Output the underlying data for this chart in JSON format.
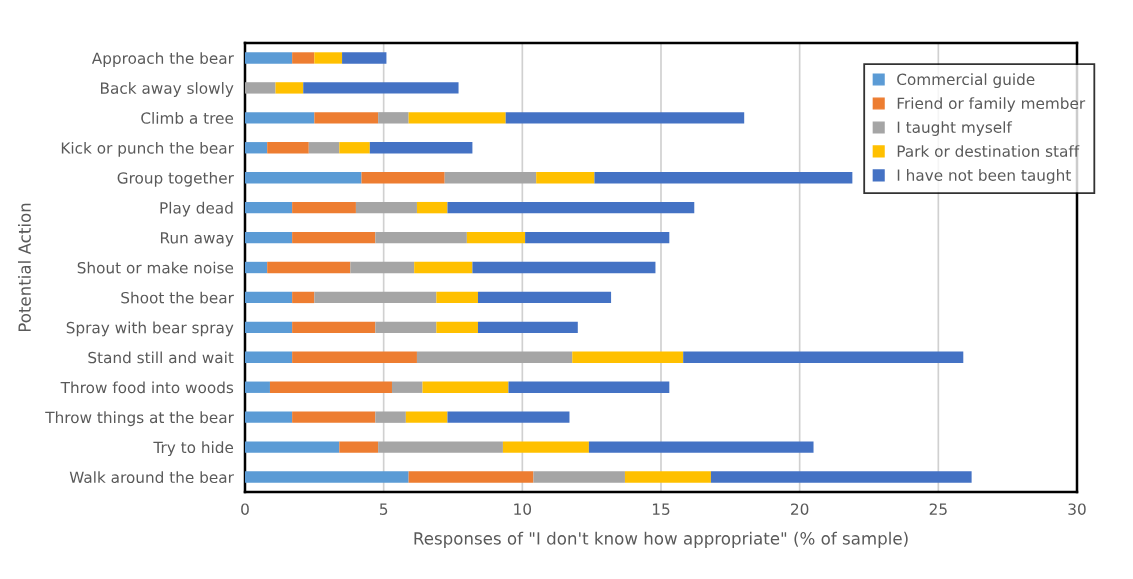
{
  "chart_data": {
    "type": "bar",
    "orientation": "horizontal",
    "stacked": true,
    "categories": [
      "Approach the bear",
      "Back away slowly",
      "Climb a tree",
      "Kick or punch the bear",
      "Group together",
      "Play dead",
      "Run away",
      "Shout or make noise",
      "Shoot the bear",
      "Spray with bear spray",
      "Stand still and wait",
      "Throw food into woods",
      "Throw things at the bear",
      "Try to hide",
      "Walk around the bear"
    ],
    "series": [
      {
        "name": "Commercial guide",
        "color": "#5b9bd5",
        "values": [
          1.7,
          0,
          2.5,
          0.8,
          4.2,
          1.7,
          1.7,
          0.8,
          1.7,
          1.7,
          1.7,
          0.9,
          1.7,
          3.4,
          5.9
        ]
      },
      {
        "name": "Friend or family member",
        "color": "#ed7d31",
        "values": [
          0.8,
          0,
          2.3,
          1.5,
          3.0,
          2.3,
          3.0,
          3.0,
          0.8,
          3.0,
          4.5,
          4.4,
          3.0,
          1.4,
          4.5
        ]
      },
      {
        "name": "I taught myself",
        "color": "#a5a5a5",
        "values": [
          0,
          1.1,
          1.1,
          1.1,
          3.3,
          2.2,
          3.3,
          2.3,
          4.4,
          2.2,
          5.6,
          1.1,
          1.1,
          4.5,
          3.3
        ]
      },
      {
        "name": "Park or destination staff",
        "color": "#ffc000",
        "values": [
          1.0,
          1.0,
          3.5,
          1.1,
          2.1,
          1.1,
          2.1,
          2.1,
          1.5,
          1.5,
          4.0,
          3.1,
          1.5,
          3.1,
          3.1
        ]
      },
      {
        "name": "I have not been taught",
        "color": "#4472c4",
        "values": [
          1.6,
          5.6,
          8.6,
          3.7,
          9.3,
          8.9,
          5.2,
          6.6,
          4.8,
          3.6,
          10.1,
          5.8,
          4.4,
          8.1,
          9.4
        ]
      }
    ],
    "xlim": [
      0,
      30
    ],
    "xticks": [
      0,
      5,
      10,
      15,
      20,
      25,
      30
    ],
    "xlabel": "Responses of \"I don't know how appropriate\" (% of sample)",
    "ylabel": "Potential Action",
    "grid": "x",
    "legend": "top right"
  }
}
